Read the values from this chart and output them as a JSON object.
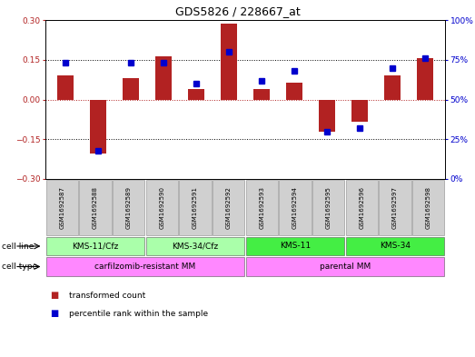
{
  "title": "GDS5826 / 228667_at",
  "samples": [
    "GSM1692587",
    "GSM1692588",
    "GSM1692589",
    "GSM1692590",
    "GSM1692591",
    "GSM1692592",
    "GSM1692593",
    "GSM1692594",
    "GSM1692595",
    "GSM1692596",
    "GSM1692597",
    "GSM1692598"
  ],
  "transformed_count": [
    0.09,
    -0.205,
    0.08,
    0.162,
    0.04,
    0.285,
    0.04,
    0.065,
    -0.12,
    -0.085,
    0.09,
    0.155
  ],
  "percentile_rank": [
    73,
    18,
    73,
    73,
    60,
    80,
    62,
    68,
    30,
    32,
    70,
    76
  ],
  "bar_color": "#b22222",
  "dot_color": "#0000cd",
  "ylim_left": [
    -0.3,
    0.3
  ],
  "ylim_right": [
    0,
    100
  ],
  "yticks_left": [
    -0.3,
    -0.15,
    0,
    0.15,
    0.3
  ],
  "yticks_right": [
    0,
    25,
    50,
    75,
    100
  ],
  "cell_line_labels": [
    "KMS-11/Cfz",
    "KMS-34/Cfz",
    "KMS-11",
    "KMS-34"
  ],
  "cell_line_starts": [
    0,
    3,
    6,
    9
  ],
  "cell_line_ends": [
    3,
    6,
    9,
    12
  ],
  "cell_line_colors": [
    "#aaffaa",
    "#aaffaa",
    "#44ee44",
    "#44ee44"
  ],
  "cell_type_labels": [
    "carfilzomib-resistant MM",
    "parental MM"
  ],
  "cell_type_starts": [
    0,
    6
  ],
  "cell_type_ends": [
    6,
    12
  ],
  "cell_type_color": "#ff88ff",
  "sample_bg_color": "#d0d0d0",
  "bar_width": 0.5,
  "fig_w": 5.23,
  "fig_h": 3.93,
  "dpi": 100
}
